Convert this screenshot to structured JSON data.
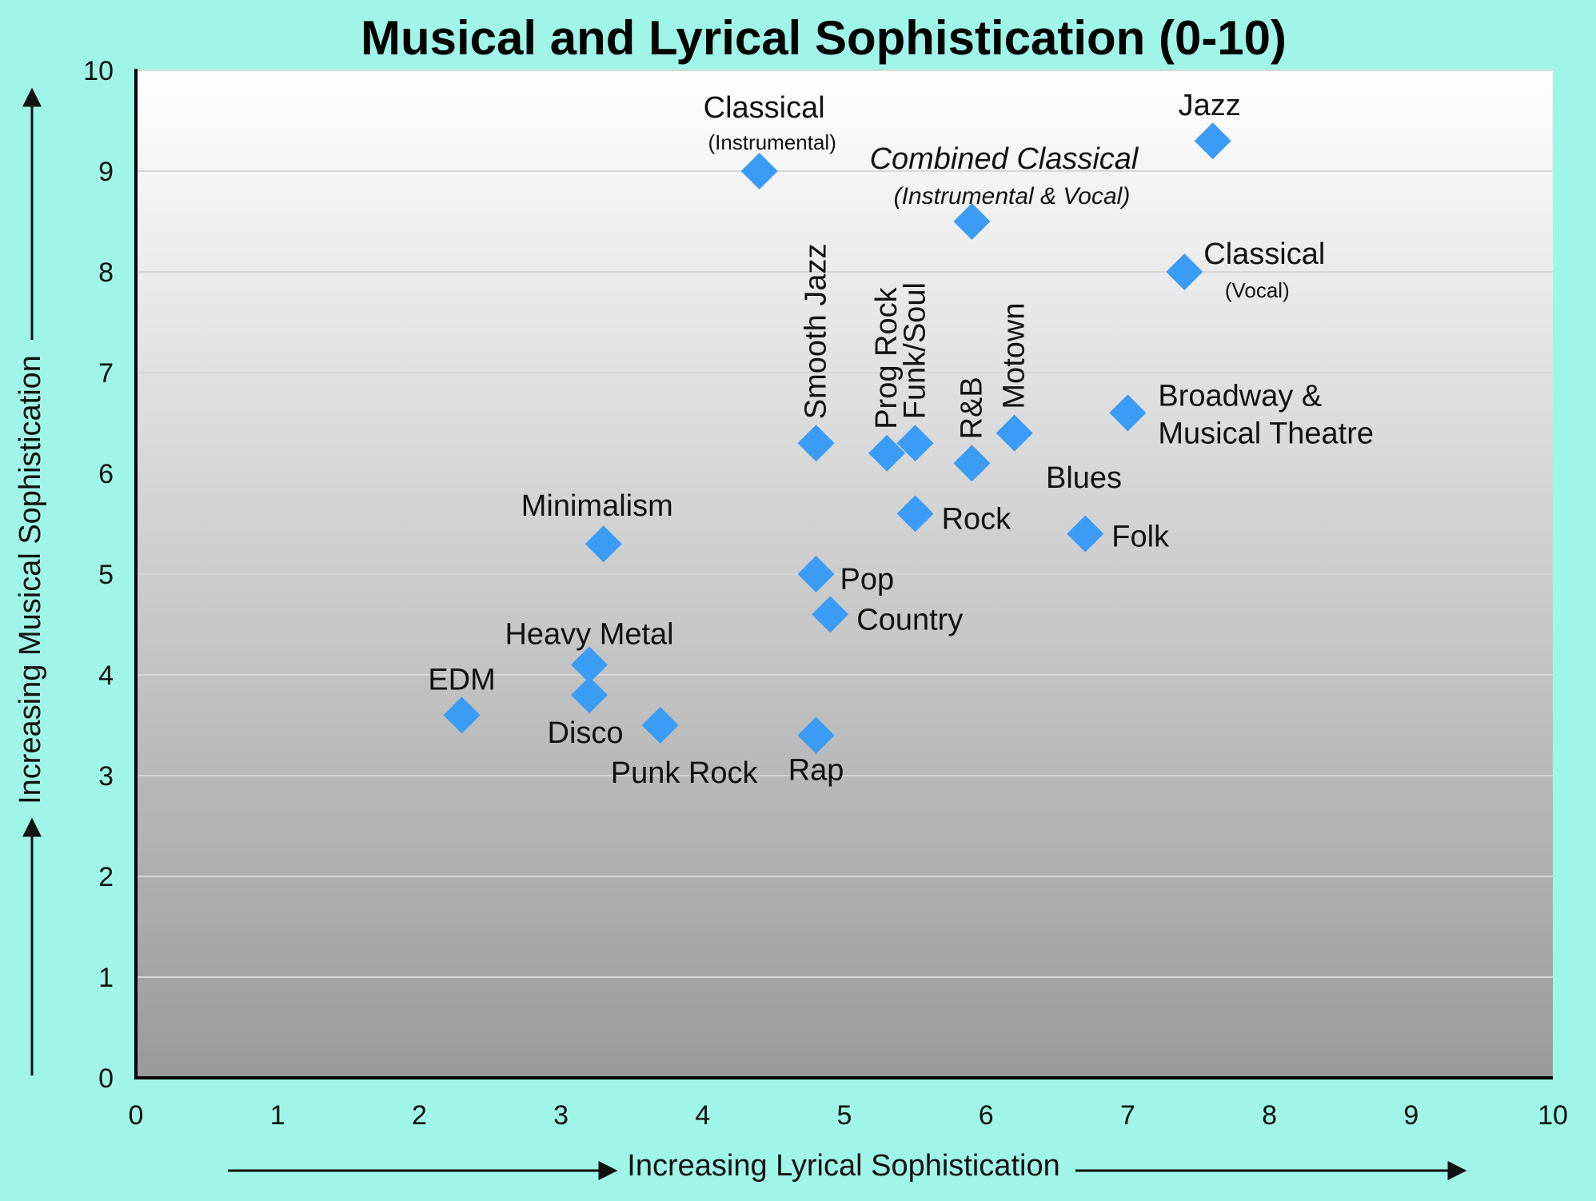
{
  "chart_data": {
    "type": "scatter",
    "title": "Musical and Lyrical Sophistication (0-10)",
    "xlabel": "Increasing Lyrical Sophistication",
    "ylabel": "Increasing Musical Sophistication",
    "xlim": [
      0,
      10
    ],
    "ylim": [
      0,
      10
    ],
    "x_ticks": [
      "0",
      "1",
      "2",
      "3",
      "4",
      "5",
      "6",
      "7",
      "8",
      "9",
      "10"
    ],
    "y_ticks": [
      "0",
      "1",
      "2",
      "3",
      "4",
      "5",
      "6",
      "7",
      "8",
      "9",
      "10"
    ],
    "grid": "horizontal",
    "marker": "diamond",
    "marker_color": "#3a9cf4",
    "points": [
      {
        "x": 4.4,
        "y": 9.0,
        "label": "Classical",
        "sublabel": "(Instrumental)"
      },
      {
        "x": 7.6,
        "y": 9.3,
        "label": "Jazz"
      },
      {
        "x": 5.9,
        "y": 8.5,
        "label": "Combined Classical",
        "sublabel": "(Instrumental & Vocal)",
        "italic": true
      },
      {
        "x": 7.4,
        "y": 8.0,
        "label": "Classical",
        "sublabel": "(Vocal)"
      },
      {
        "x": 7.0,
        "y": 6.6,
        "label": "Broadway &",
        "label2": "Musical Theatre"
      },
      {
        "x": 4.8,
        "y": 6.3,
        "label": "Smooth Jazz",
        "vertical": true
      },
      {
        "x": 5.3,
        "y": 6.2,
        "label": "Prog Rock",
        "vertical": true
      },
      {
        "x": 5.5,
        "y": 6.3,
        "label": "Funk/Soul",
        "vertical": true
      },
      {
        "x": 5.9,
        "y": 6.1,
        "label": "R&B",
        "vertical": true
      },
      {
        "x": 6.2,
        "y": 6.4,
        "label": "Motown",
        "vertical": true
      },
      {
        "x": 6.7,
        "y": 5.4,
        "label": "Folk"
      },
      {
        "x": 5.5,
        "y": 5.6,
        "label": "Rock"
      },
      {
        "x": 3.3,
        "y": 5.3,
        "label": "Minimalism"
      },
      {
        "x": 4.8,
        "y": 5.0,
        "label": "Pop"
      },
      {
        "x": 4.9,
        "y": 4.6,
        "label": "Country"
      },
      {
        "x": 3.2,
        "y": 4.1,
        "label": "Heavy Metal"
      },
      {
        "x": 3.2,
        "y": 3.8,
        "label": "Disco"
      },
      {
        "x": 2.3,
        "y": 3.6,
        "label": "EDM"
      },
      {
        "x": 3.7,
        "y": 3.5,
        "label": "Punk Rock"
      },
      {
        "x": 4.8,
        "y": 3.4,
        "label": "Rap"
      }
    ],
    "annotations": [
      "Blues"
    ]
  }
}
